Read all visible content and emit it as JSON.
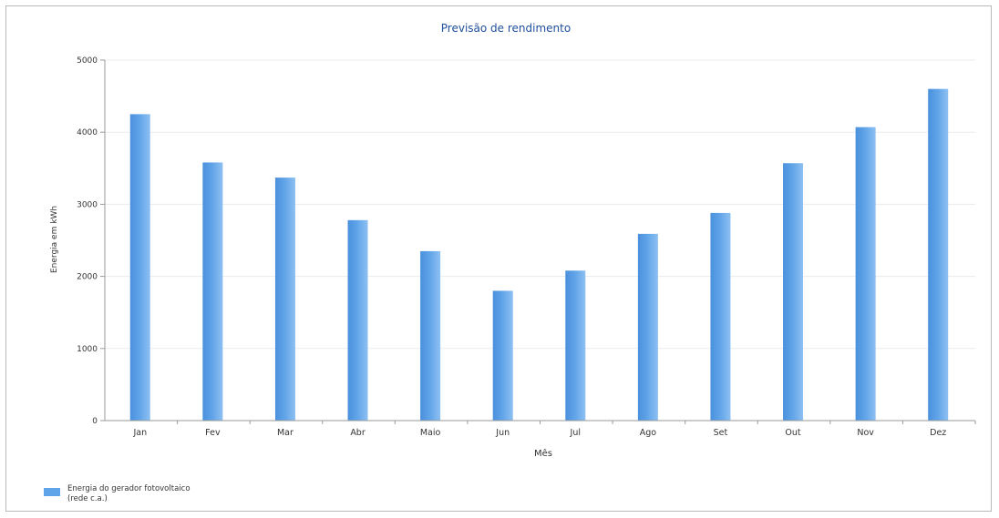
{
  "colors": {
    "title": "#1f4e9c",
    "bar": "#5fa3e8",
    "bar_light": "#8ec0f2",
    "bar_dark": "#4a90dc",
    "axis": "#9a9a9a",
    "grid": "#e8ecef",
    "text": "#333333"
  },
  "chart_data": {
    "type": "bar",
    "title": "Previsão de rendimento",
    "xlabel": "Mês",
    "ylabel": "Energia em kWh",
    "categories": [
      "Jan",
      "Fev",
      "Mar",
      "Abr",
      "Maio",
      "Jun",
      "Jul",
      "Ago",
      "Set",
      "Out",
      "Nov",
      "Dez"
    ],
    "series": [
      {
        "name": "Energia do gerador fotovoltaico (rede c.a.)",
        "values": [
          4250,
          3580,
          3370,
          2780,
          2350,
          1800,
          2080,
          2590,
          2880,
          3570,
          4070,
          4600
        ]
      }
    ],
    "ylim": [
      0,
      5000
    ],
    "yticks": [
      "0",
      "1000",
      "2000",
      "3000",
      "4000",
      "5000"
    ],
    "grid": true,
    "legend": {
      "placement": "bottom-left",
      "lines": [
        "Energia do gerador fotovoltaico",
        "(rede c.a.)"
      ]
    }
  }
}
